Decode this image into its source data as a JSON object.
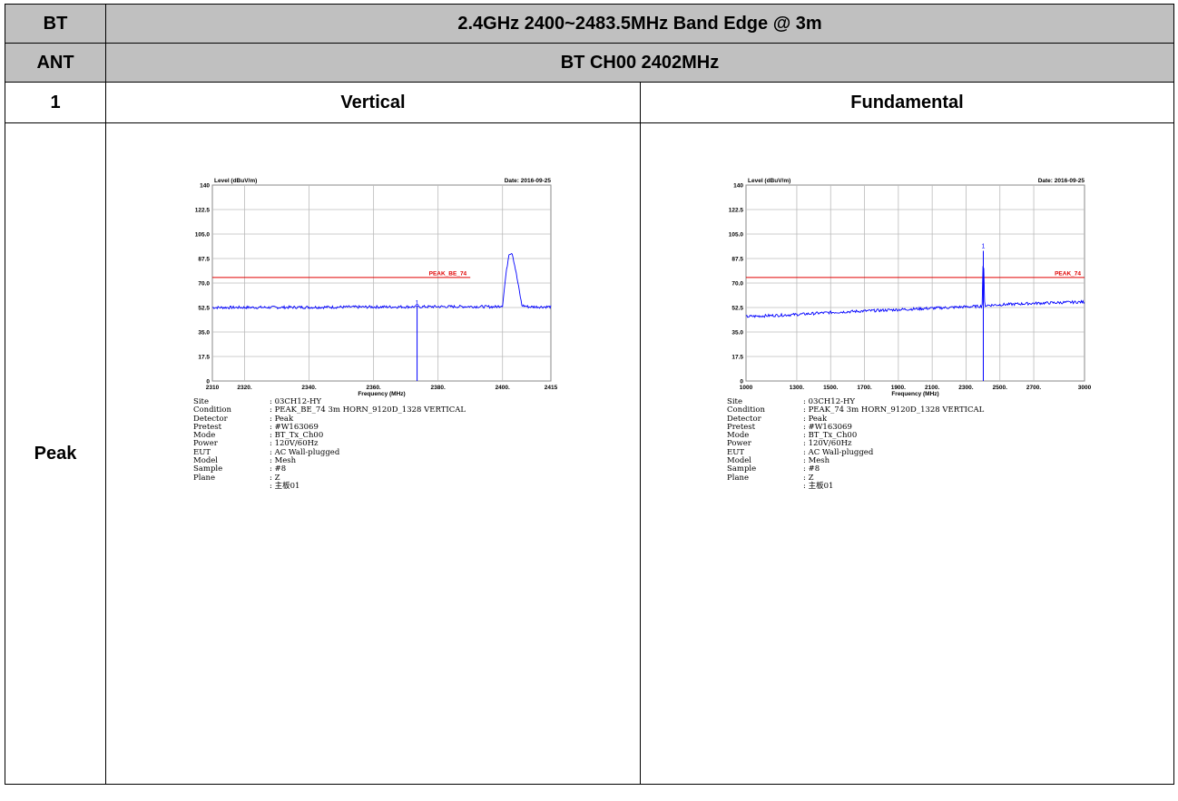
{
  "header": {
    "col1": "BT",
    "title": "2.4GHz 2400~2483.5MHz Band Edge @ 3m"
  },
  "ant_row": {
    "label": "ANT",
    "value": "BT CH00 2402MHz"
  },
  "idx_row": {
    "label": "1",
    "left": "Vertical",
    "right": "Fundamental"
  },
  "row_label": "Peak",
  "plots": [
    {
      "ylabel": "Level (dBuV/m)",
      "date": "Date: 2016-09-25",
      "xlabel": "Frequency (MHz)",
      "limit_label": "PEAK_BE_74",
      "marker": "1",
      "yticks": [
        "140",
        "122.5",
        "105.0",
        "87.5",
        "70.0",
        "52.5",
        "35.0",
        "17.5",
        "0"
      ],
      "xticks": [
        "2310",
        "2320.",
        "2340.",
        "2360.",
        "2380.",
        "2400.",
        "2415"
      ],
      "info": [
        {
          "k": "Site",
          "v": ": 03CH12-HY"
        },
        {
          "k": "Condition",
          "v": ": PEAK_BE_74 3m HORN_9120D_1328 VERTICAL"
        },
        {
          "k": "Detector",
          "v": ": Peak"
        },
        {
          "k": "Pretest",
          "v": ": #W163069"
        },
        {
          "k": "Mode",
          "v": ": BT_Tx_Ch00"
        },
        {
          "k": "Power",
          "v": ": 120V/60Hz"
        },
        {
          "k": "EUT",
          "v": ": AC Wall-plugged"
        },
        {
          "k": "Model",
          "v": ": Mesh"
        },
        {
          "k": "Sample",
          "v": ": #8"
        },
        {
          "k": "Plane",
          "v": ": Z"
        },
        {
          "k": "",
          "v": ": 主板01"
        }
      ]
    },
    {
      "ylabel": "Level (dBuV/m)",
      "date": "Date: 2016-09-25",
      "xlabel": "Frequency (MHz)",
      "limit_label": "PEAK_74",
      "marker": "1",
      "yticks": [
        "140",
        "122.5",
        "105.0",
        "87.5",
        "70.0",
        "52.5",
        "35.0",
        "17.5",
        "0"
      ],
      "xticks": [
        "1000",
        "1300.",
        "1500.",
        "1700.",
        "1900.",
        "2100.",
        "2300.",
        "2500.",
        "2700.",
        "3000"
      ],
      "info": [
        {
          "k": "Site",
          "v": ": 03CH12-HY"
        },
        {
          "k": "Condition",
          "v": ": PEAK_74 3m HORN_9120D_1328 VERTICAL"
        },
        {
          "k": "Detector",
          "v": ": Peak"
        },
        {
          "k": "Pretest",
          "v": ": #W163069"
        },
        {
          "k": "Mode",
          "v": ": BT_Tx_Ch00"
        },
        {
          "k": "Power",
          "v": ": 120V/60Hz"
        },
        {
          "k": "EUT",
          "v": ": AC Wall-plugged"
        },
        {
          "k": "Model",
          "v": ": Mesh"
        },
        {
          "k": "Sample",
          "v": ": #8"
        },
        {
          "k": "Plane",
          "v": ": Z"
        },
        {
          "k": "",
          "v": ": 主板01"
        }
      ]
    }
  ],
  "chart_data": [
    {
      "type": "line",
      "title": "",
      "xlabel": "Frequency (MHz)",
      "ylabel": "Level (dBuV/m)",
      "xlim": [
        2310,
        2415
      ],
      "ylim": [
        0,
        140
      ],
      "grid": true,
      "limit_line": {
        "name": "PEAK_BE_74",
        "y": 74,
        "x_range": [
          2310,
          2390
        ]
      },
      "marker": {
        "label": "1",
        "x": 2373.5,
        "y": 52.5
      },
      "series": [
        {
          "color": "#0000ff",
          "x": [
            2310,
            2330,
            2350,
            2370,
            2390,
            2398,
            2400,
            2401,
            2402,
            2403,
            2404,
            2406,
            2408,
            2415
          ],
          "y": [
            52.5,
            52.6,
            52.8,
            53.0,
            53.2,
            53.0,
            54.0,
            75.0,
            91.0,
            91.5,
            80.0,
            54.0,
            53.0,
            53.0
          ]
        }
      ],
      "colors": {
        "trace": "#0000ff",
        "limit": "#e00000"
      }
    },
    {
      "type": "line",
      "title": "",
      "xlabel": "Frequency (MHz)",
      "ylabel": "Level (dBuV/m)",
      "xlim": [
        1000,
        3000
      ],
      "ylim": [
        0,
        140
      ],
      "grid": true,
      "limit_line": {
        "name": "PEAK_74",
        "y": 74,
        "x_range": [
          1000,
          3000
        ]
      },
      "marker": {
        "label": "1",
        "x": 2402,
        "y": 93
      },
      "series": [
        {
          "color": "#0000ff",
          "x": [
            1000,
            1300,
            1500,
            1700,
            1900,
            2100,
            2300,
            2395,
            2402,
            2410,
            2500,
            2700,
            3000
          ],
          "y": [
            46.0,
            47.5,
            49.0,
            50.0,
            51.0,
            52.0,
            53.0,
            53.5,
            93.0,
            54.0,
            54.5,
            55.5,
            56.5
          ]
        }
      ],
      "colors": {
        "trace": "#0000ff",
        "limit": "#e00000"
      }
    }
  ]
}
